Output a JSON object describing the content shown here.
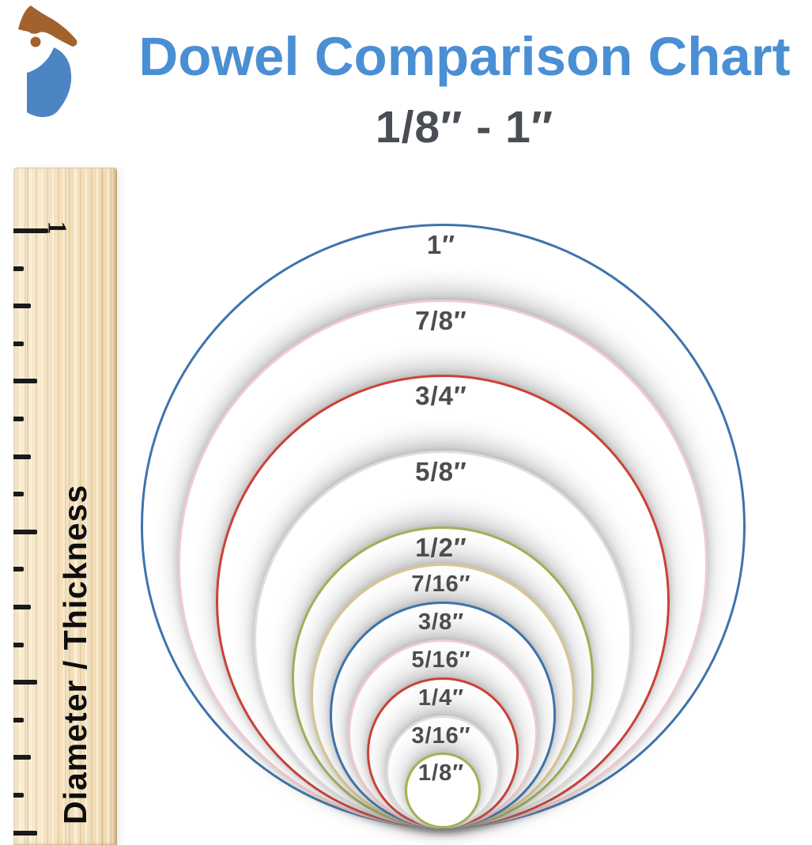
{
  "logo": {
    "icon": "woodpecker-bird-logo",
    "head_color": "#a2622e",
    "body_color": "#4c84c4"
  },
  "header": {
    "title": "Dowel Comparison Chart",
    "subtitle": "1/8″ - 1″",
    "title_color": "#4a8fd4",
    "subtitle_color": "#494e54"
  },
  "ruler": {
    "inch_label": "1",
    "axis_label": "Diameter / Thickness",
    "tick_count": 17,
    "wood_base_color": "#f3e0bd"
  },
  "chart_data": {
    "type": "circle-size-comparison",
    "title": "Dowel Comparison Chart",
    "subtitle": "1/8″ - 1″",
    "unit": "inches",
    "axis_label": "Diameter / Thickness",
    "label_color": "#4d4d4d",
    "range": [
      0.125,
      1
    ],
    "circles": [
      {
        "label": "1″",
        "diameter_in": 1.0,
        "color": "#3e73ad"
      },
      {
        "label": "7/8″",
        "diameter_in": 0.875,
        "color": "#f2cbd1"
      },
      {
        "label": "3/4″",
        "diameter_in": 0.75,
        "color": "#cc4136"
      },
      {
        "label": "5/8″",
        "diameter_in": 0.625,
        "color": "#dedede"
      },
      {
        "label": "1/2″",
        "diameter_in": 0.5,
        "color": "#a2b154"
      },
      {
        "label": "7/16″",
        "diameter_in": 0.4375,
        "color": "#dbc78f"
      },
      {
        "label": "3/8″",
        "diameter_in": 0.375,
        "color": "#3e73ad"
      },
      {
        "label": "5/16″",
        "diameter_in": 0.3125,
        "color": "#f2cbd1"
      },
      {
        "label": "1/4″",
        "diameter_in": 0.25,
        "color": "#cc4136"
      },
      {
        "label": "3/16″",
        "diameter_in": 0.1875,
        "color": "#dedede"
      },
      {
        "label": "1/8″",
        "diameter_in": 0.125,
        "color": "#a2b154"
      }
    ]
  }
}
